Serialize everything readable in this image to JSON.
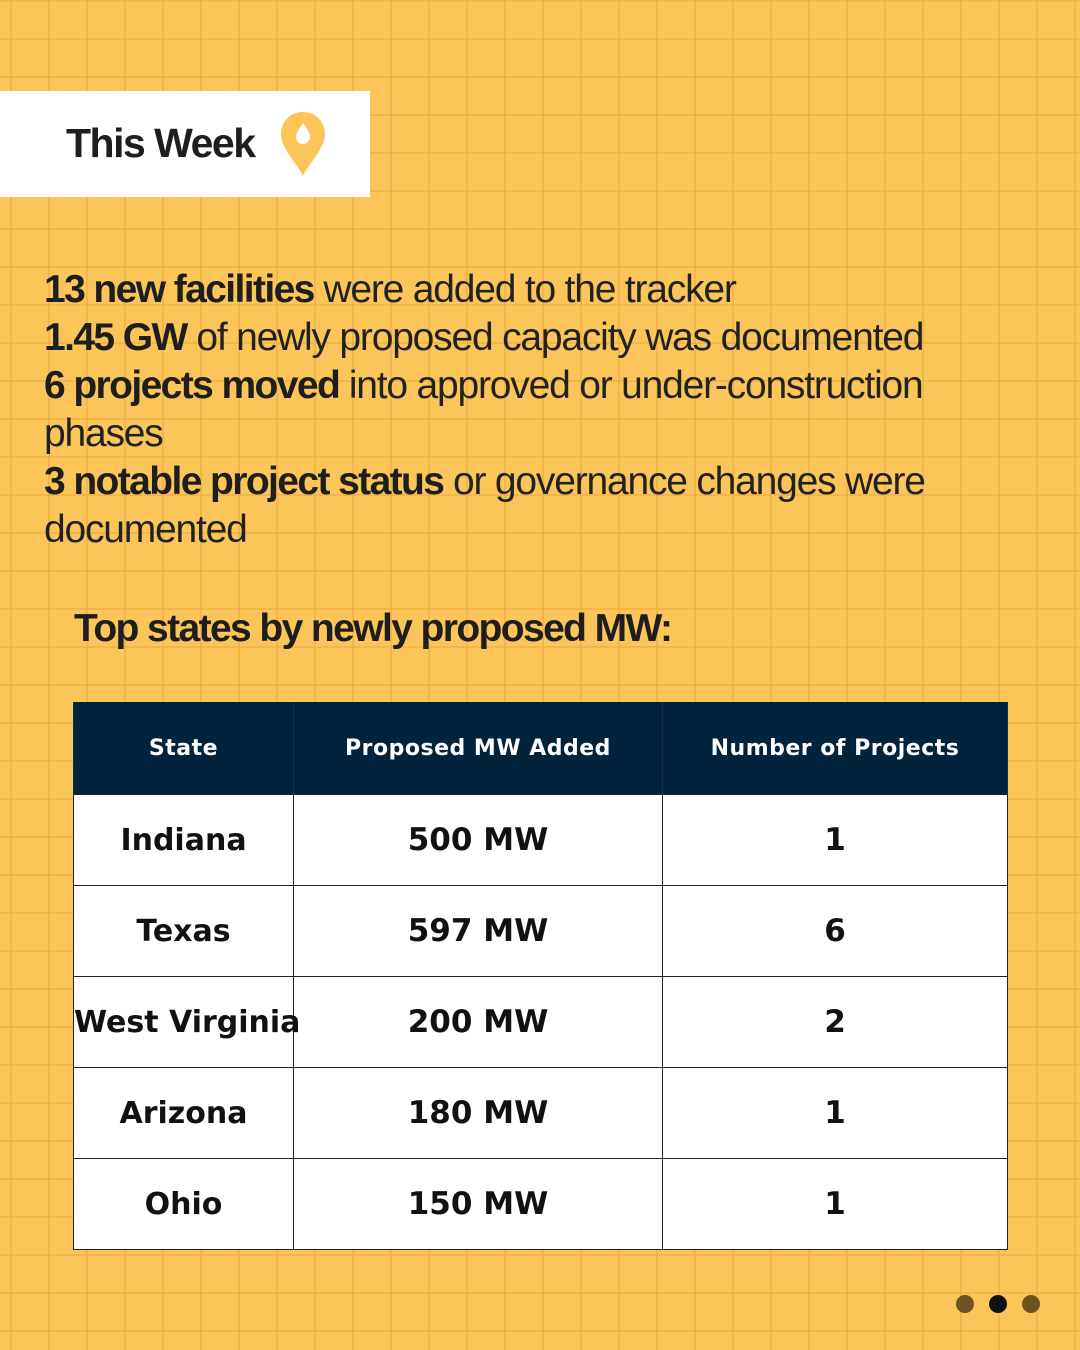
{
  "badge": {
    "title": "This Week",
    "icon": "map-pin-icon"
  },
  "stats": [
    {
      "bold": "13 new facilities",
      "rest": " were added to the tracker"
    },
    {
      "bold": "1.45 GW",
      "rest": " of newly proposed capacity was documented"
    },
    {
      "bold": "6 projects moved",
      "rest": " into approved or under-construction phases"
    },
    {
      "bold": "3 notable project status",
      "rest": " or governance changes were documented"
    }
  ],
  "subheading": "Top states by newly proposed MW:",
  "table": {
    "headers": [
      "State",
      "Proposed MW Added",
      "Number of Projects"
    ],
    "rows": [
      [
        "Indiana",
        "500 MW",
        "1"
      ],
      [
        "Texas",
        "597 MW",
        "6"
      ],
      [
        "West Virginia",
        "200 MW",
        "2"
      ],
      [
        "Arizona",
        "180 MW",
        "1"
      ],
      [
        "Ohio",
        "150 MW",
        "1"
      ]
    ]
  },
  "pagination": {
    "total": 3,
    "active_index": 1
  },
  "colors": {
    "background": "#fcc55a",
    "header": "#01233b",
    "accent": "#fcc55a"
  }
}
